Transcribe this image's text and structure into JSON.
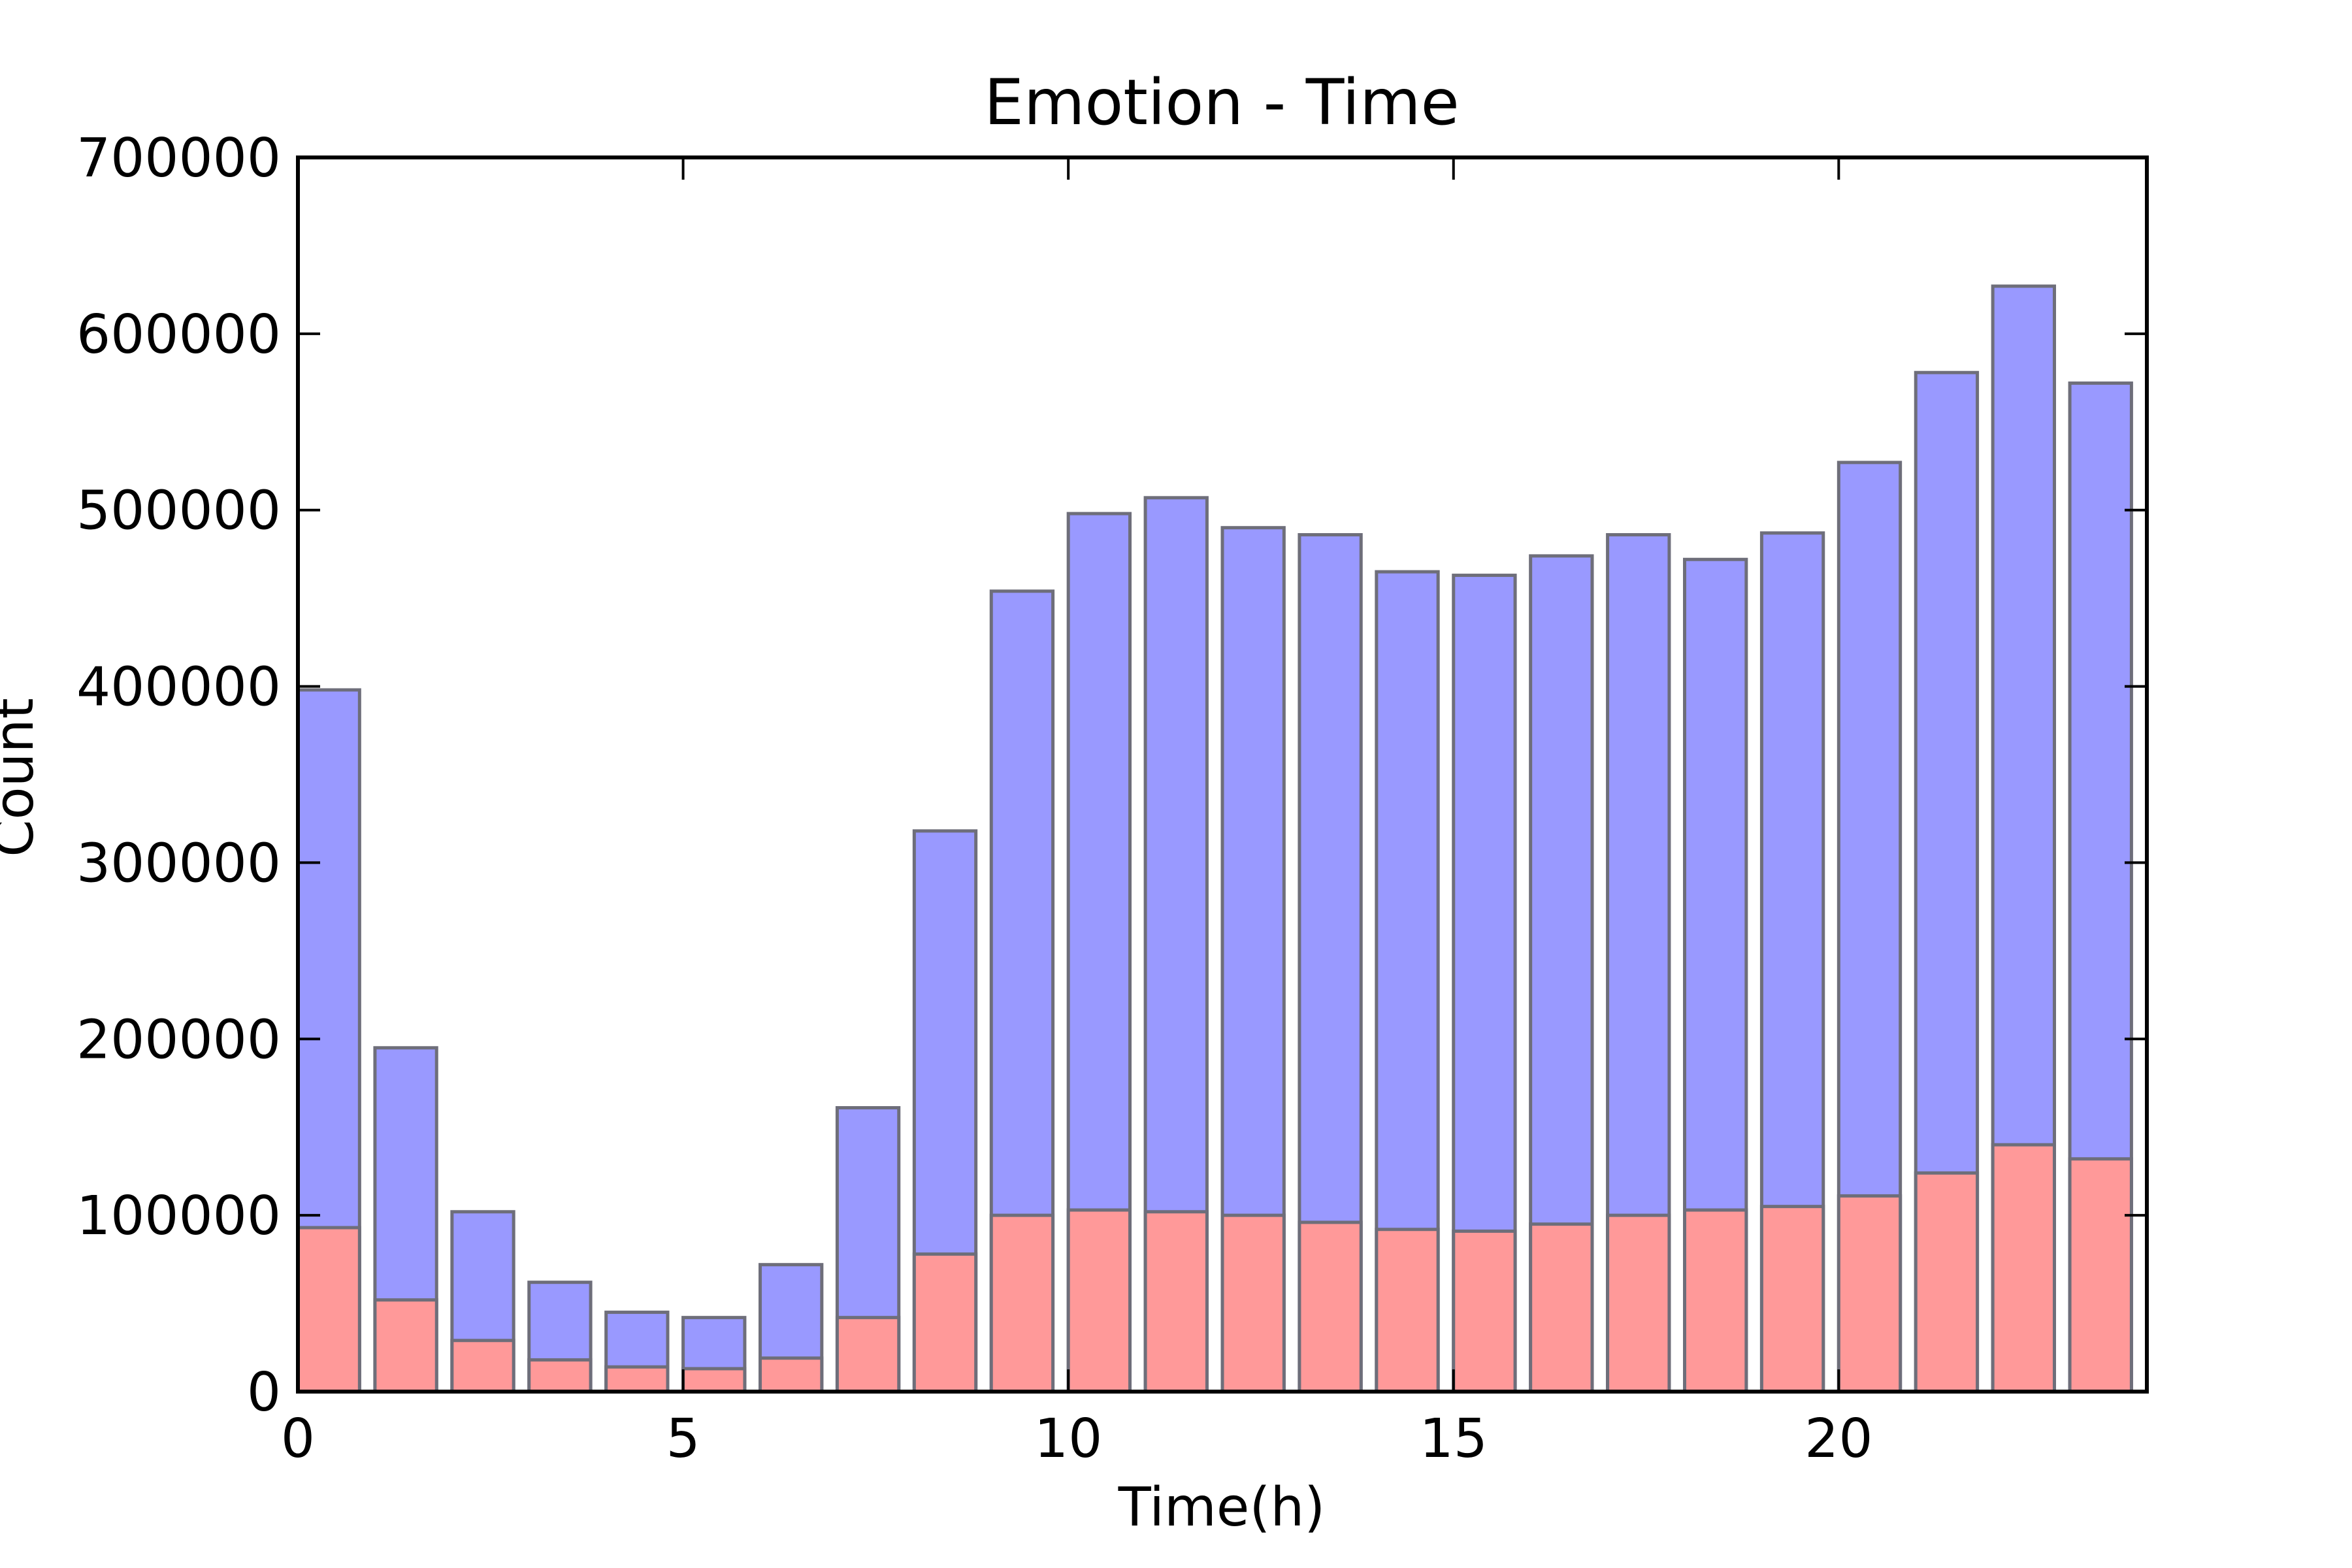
{
  "chart_data": {
    "type": "bar",
    "title": "Emotion - Time",
    "xlabel": "Time(h)",
    "ylabel": "Count",
    "xlim": [
      0,
      24
    ],
    "ylim": [
      0,
      700000
    ],
    "x_ticks": [
      0,
      5,
      10,
      15,
      20
    ],
    "y_ticks": [
      0,
      100000,
      200000,
      300000,
      400000,
      500000,
      600000,
      700000
    ],
    "grid": false,
    "legend": "none",
    "categories": [
      0,
      1,
      2,
      3,
      4,
      5,
      6,
      7,
      8,
      9,
      10,
      11,
      12,
      13,
      14,
      15,
      16,
      17,
      18,
      19,
      20,
      21,
      22,
      23
    ],
    "series": [
      {
        "color": "#9999ff",
        "values": [
          398000,
          195000,
          102000,
          62000,
          45000,
          42000,
          72000,
          161000,
          318000,
          454000,
          498000,
          507000,
          490000,
          486000,
          465000,
          463000,
          474000,
          486000,
          472000,
          487000,
          527000,
          578000,
          627000,
          572000
        ]
      },
      {
        "color": "#ff9999",
        "values": [
          93000,
          52000,
          29000,
          18000,
          14000,
          13000,
          19000,
          42000,
          78000,
          100000,
          103000,
          102000,
          100000,
          96000,
          92000,
          91000,
          95000,
          100000,
          103000,
          105000,
          111000,
          124000,
          140000,
          132000
        ]
      }
    ]
  }
}
